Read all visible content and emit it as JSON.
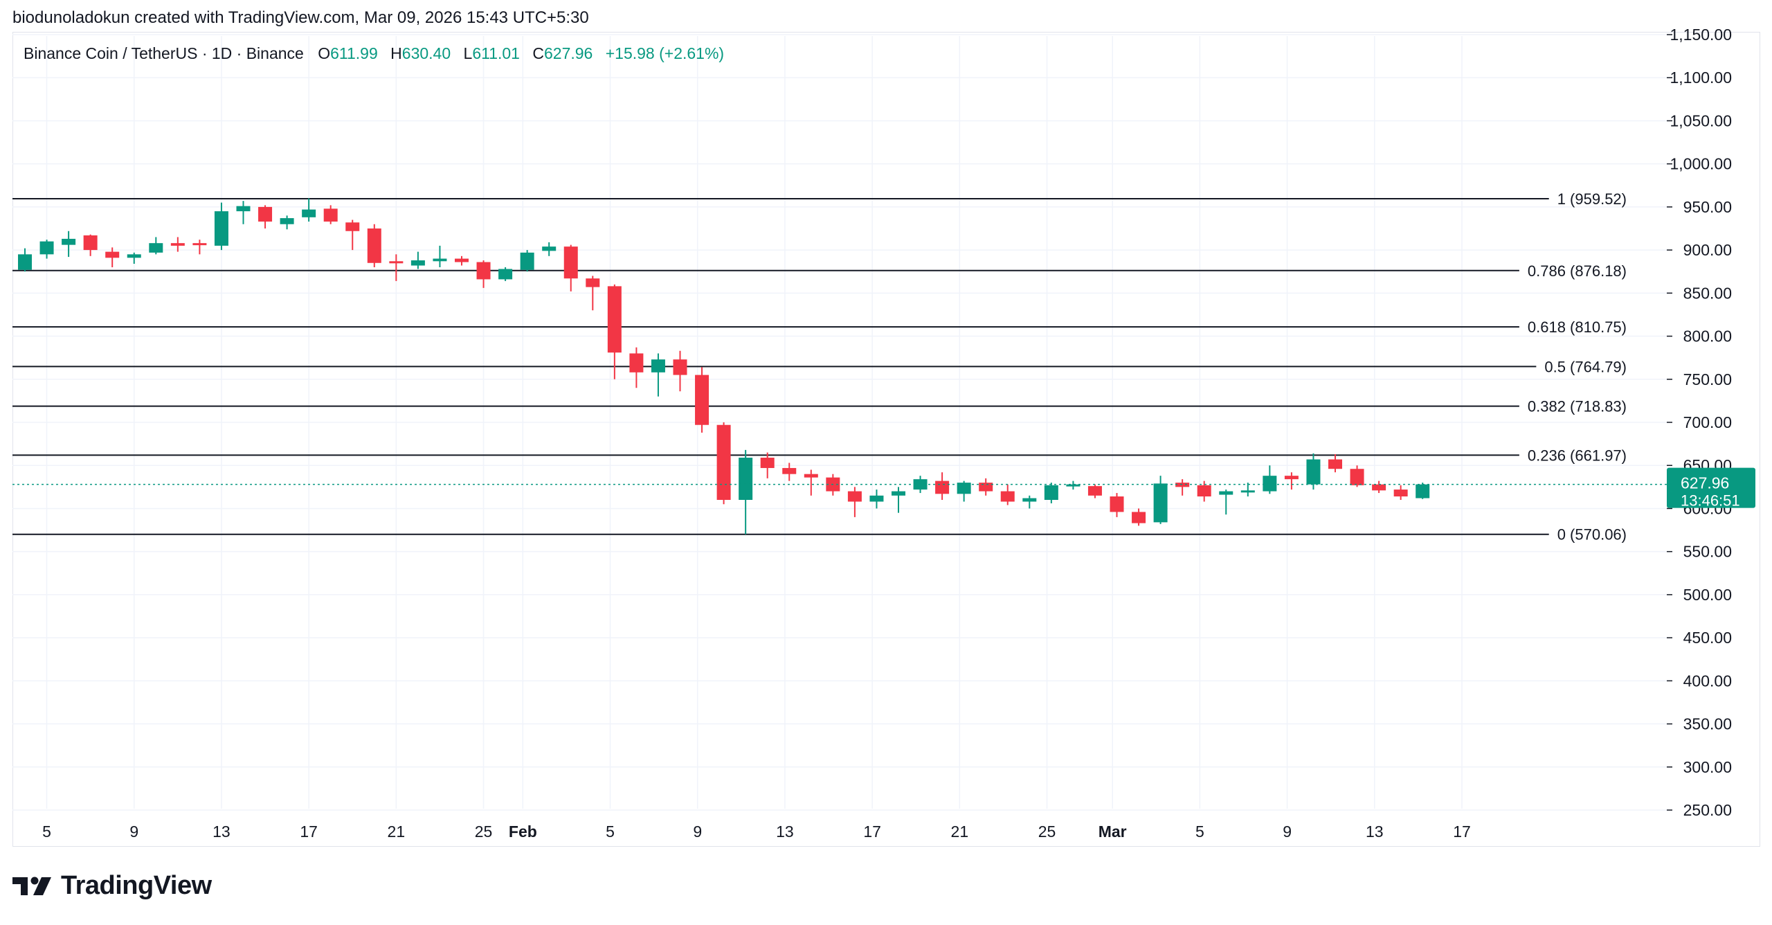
{
  "header": {
    "credit": "biodunoladokun created with TradingView.com, Mar 09, 2026 15:43 UTC+5:30"
  },
  "legend": {
    "symbol": "Binance Coin / TetherUS · 1D · Binance",
    "open_label": "O",
    "open": "611.99",
    "high_label": "H",
    "high": "630.40",
    "low_label": "L",
    "low": "611.01",
    "close_label": "C",
    "close": "627.96",
    "change": "+15.98 (+2.61%)"
  },
  "price_tag": {
    "price": "627.96",
    "countdown": "13:46:51"
  },
  "logo": {
    "text": "TradingView",
    "icon": "tradingview-logo-icon"
  },
  "colors": {
    "up": "#089981",
    "down": "#f23645",
    "grid": "#f0f3fa",
    "fib": "#131722",
    "text": "#131722"
  },
  "chart_data": {
    "type": "candlestick",
    "title": "Binance Coin / TetherUS · 1D · Binance",
    "ylim": [
      250,
      1150
    ],
    "y_ticks": [
      "250.00",
      "300.00",
      "350.00",
      "400.00",
      "450.00",
      "500.00",
      "550.00",
      "600.00",
      "650.00",
      "700.00",
      "750.00",
      "800.00",
      "850.00",
      "900.00",
      "950.00",
      "1,000.00",
      "1,050.00",
      "1,100.00",
      "1,150.00"
    ],
    "x_ticks": [
      {
        "label": "5",
        "bold": false
      },
      {
        "label": "9",
        "bold": false
      },
      {
        "label": "13",
        "bold": false
      },
      {
        "label": "17",
        "bold": false
      },
      {
        "label": "21",
        "bold": false
      },
      {
        "label": "25",
        "bold": false
      },
      {
        "label": "Feb",
        "bold": true
      },
      {
        "label": "5",
        "bold": false
      },
      {
        "label": "9",
        "bold": false
      },
      {
        "label": "13",
        "bold": false
      },
      {
        "label": "17",
        "bold": false
      },
      {
        "label": "21",
        "bold": false
      },
      {
        "label": "25",
        "bold": false
      },
      {
        "label": "Mar",
        "bold": true
      },
      {
        "label": "5",
        "bold": false
      },
      {
        "label": "9",
        "bold": false
      },
      {
        "label": "13",
        "bold": false
      },
      {
        "label": "17",
        "bold": false
      }
    ],
    "fib_levels": [
      {
        "label": "1 (959.52)",
        "value": 959.52
      },
      {
        "label": "0.786 (876.18)",
        "value": 876.18
      },
      {
        "label": "0.618 (810.75)",
        "value": 810.75
      },
      {
        "label": "0.5 (764.79)",
        "value": 764.79
      },
      {
        "label": "0.382 (718.83)",
        "value": 718.83
      },
      {
        "label": "0.236 (661.97)",
        "value": 661.97
      },
      {
        "label": "0 (570.06)",
        "value": 570.06
      }
    ],
    "last_price": 627.96,
    "candles": [
      {
        "o": 877,
        "h": 902,
        "l": 875,
        "c": 895
      },
      {
        "o": 895,
        "h": 912,
        "l": 890,
        "c": 910
      },
      {
        "o": 906,
        "h": 922,
        "l": 892,
        "c": 913
      },
      {
        "o": 917,
        "h": 918,
        "l": 893,
        "c": 900
      },
      {
        "o": 898,
        "h": 903,
        "l": 880,
        "c": 891
      },
      {
        "o": 891,
        "h": 897,
        "l": 884,
        "c": 895
      },
      {
        "o": 897,
        "h": 915,
        "l": 895,
        "c": 908
      },
      {
        "o": 908,
        "h": 915,
        "l": 898,
        "c": 905
      },
      {
        "o": 908,
        "h": 912,
        "l": 895,
        "c": 907
      },
      {
        "o": 905,
        "h": 955,
        "l": 900,
        "c": 945
      },
      {
        "o": 945,
        "h": 957,
        "l": 930,
        "c": 951
      },
      {
        "o": 950,
        "h": 952,
        "l": 925,
        "c": 933
      },
      {
        "o": 930,
        "h": 940,
        "l": 924,
        "c": 937
      },
      {
        "o": 938,
        "h": 960,
        "l": 933,
        "c": 947
      },
      {
        "o": 948,
        "h": 952,
        "l": 930,
        "c": 933
      },
      {
        "o": 932,
        "h": 935,
        "l": 900,
        "c": 922
      },
      {
        "o": 925,
        "h": 930,
        "l": 880,
        "c": 885
      },
      {
        "o": 887,
        "h": 895,
        "l": 864,
        "c": 885
      },
      {
        "o": 882,
        "h": 898,
        "l": 878,
        "c": 888
      },
      {
        "o": 887,
        "h": 905,
        "l": 880,
        "c": 890
      },
      {
        "o": 890,
        "h": 893,
        "l": 882,
        "c": 886
      },
      {
        "o": 886,
        "h": 888,
        "l": 856,
        "c": 866
      },
      {
        "o": 866,
        "h": 880,
        "l": 864,
        "c": 878
      },
      {
        "o": 877,
        "h": 900,
        "l": 875,
        "c": 897
      },
      {
        "o": 899,
        "h": 909,
        "l": 893,
        "c": 904
      },
      {
        "o": 904,
        "h": 906,
        "l": 852,
        "c": 867
      },
      {
        "o": 867,
        "h": 870,
        "l": 830,
        "c": 857
      },
      {
        "o": 858,
        "h": 860,
        "l": 750,
        "c": 781
      },
      {
        "o": 780,
        "h": 787,
        "l": 740,
        "c": 758
      },
      {
        "o": 758,
        "h": 780,
        "l": 730,
        "c": 773
      },
      {
        "o": 773,
        "h": 783,
        "l": 736,
        "c": 755
      },
      {
        "o": 755,
        "h": 764,
        "l": 688,
        "c": 697
      },
      {
        "o": 697,
        "h": 700,
        "l": 605,
        "c": 610
      },
      {
        "o": 610,
        "h": 668,
        "l": 570,
        "c": 659
      },
      {
        "o": 659,
        "h": 665,
        "l": 635,
        "c": 647
      },
      {
        "o": 647,
        "h": 653,
        "l": 632,
        "c": 640
      },
      {
        "o": 640,
        "h": 645,
        "l": 615,
        "c": 636
      },
      {
        "o": 636,
        "h": 640,
        "l": 615,
        "c": 620
      },
      {
        "o": 620,
        "h": 625,
        "l": 590,
        "c": 608
      },
      {
        "o": 608,
        "h": 622,
        "l": 600,
        "c": 615
      },
      {
        "o": 615,
        "h": 625,
        "l": 595,
        "c": 620
      },
      {
        "o": 622,
        "h": 638,
        "l": 618,
        "c": 634
      },
      {
        "o": 632,
        "h": 642,
        "l": 610,
        "c": 617
      },
      {
        "o": 617,
        "h": 632,
        "l": 608,
        "c": 630
      },
      {
        "o": 630,
        "h": 635,
        "l": 615,
        "c": 620
      },
      {
        "o": 620,
        "h": 628,
        "l": 604,
        "c": 608
      },
      {
        "o": 608,
        "h": 615,
        "l": 600,
        "c": 612
      },
      {
        "o": 610,
        "h": 630,
        "l": 606,
        "c": 627
      },
      {
        "o": 627,
        "h": 632,
        "l": 622,
        "c": 628
      },
      {
        "o": 626,
        "h": 628,
        "l": 612,
        "c": 615
      },
      {
        "o": 614,
        "h": 618,
        "l": 590,
        "c": 596
      },
      {
        "o": 596,
        "h": 600,
        "l": 580,
        "c": 583
      },
      {
        "o": 584,
        "h": 638,
        "l": 582,
        "c": 629
      },
      {
        "o": 630,
        "h": 634,
        "l": 615,
        "c": 625
      },
      {
        "o": 627,
        "h": 632,
        "l": 608,
        "c": 614
      },
      {
        "o": 616,
        "h": 622,
        "l": 593,
        "c": 620
      },
      {
        "o": 619,
        "h": 630,
        "l": 614,
        "c": 621
      },
      {
        "o": 620,
        "h": 650,
        "l": 617,
        "c": 638
      },
      {
        "o": 638,
        "h": 642,
        "l": 622,
        "c": 634
      },
      {
        "o": 628,
        "h": 664,
        "l": 622,
        "c": 657
      },
      {
        "o": 657,
        "h": 663,
        "l": 642,
        "c": 646
      },
      {
        "o": 646,
        "h": 650,
        "l": 625,
        "c": 627
      },
      {
        "o": 628,
        "h": 632,
        "l": 618,
        "c": 621
      },
      {
        "o": 622,
        "h": 627,
        "l": 610,
        "c": 614
      },
      {
        "o": 612,
        "h": 630,
        "l": 611,
        "c": 628
      }
    ]
  }
}
